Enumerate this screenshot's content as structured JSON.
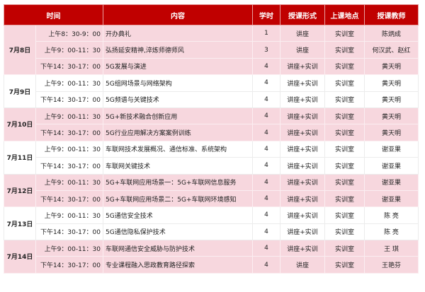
{
  "header": [
    "时间",
    "内容",
    "学时",
    "授课形式",
    "上课地点",
    "授课教师"
  ],
  "colors": {
    "header": "#c00000",
    "pink": "#f7d7de"
  },
  "groups": [
    {
      "date": "7月8日",
      "rows": [
        {
          "time": "上午8：30-9：00",
          "content": "开办典礼",
          "hours": "1",
          "form": "讲座",
          "place": "实训室",
          "teacher": "陈炳成"
        },
        {
          "time": "上午9：00-11：30",
          "content": "弘扬延安精神,淬炼师德师风",
          "hours": "3",
          "form": "讲座",
          "place": "实训室",
          "teacher": "何汉武、赵红"
        },
        {
          "time": "下午14：30-17：00",
          "content": "5G发展与演进",
          "hours": "4",
          "form": "讲座+实训",
          "place": "实训室",
          "teacher": "黄天明"
        }
      ]
    },
    {
      "date": "7月9日",
      "rows": [
        {
          "time": "上午9：00-11：30",
          "content": "5G组网场景与网络架构",
          "hours": "4",
          "form": "讲座+实训",
          "place": "实训室",
          "teacher": "黄天明"
        },
        {
          "time": "下午14：30-17：00",
          "content": "5G频谱与关键技术",
          "hours": "4",
          "form": "讲座+实训",
          "place": "实训室",
          "teacher": "黄天明"
        }
      ]
    },
    {
      "date": "7月10日",
      "rows": [
        {
          "time": "上午9：00-11：30",
          "content": "5G+新技术融合创新应用",
          "hours": "4",
          "form": "讲座+实训",
          "place": "实训室",
          "teacher": "黄天明"
        },
        {
          "time": "下午14：30-17：00",
          "content": "5G行业应用解决方案案例训练",
          "hours": "4",
          "form": "讲座+实训",
          "place": "实训室",
          "teacher": "黄天明"
        }
      ]
    },
    {
      "date": "7月11日",
      "rows": [
        {
          "time": "上午9：00-11：30",
          "content": "车联网技术发展概况、通信标准、系统架构",
          "hours": "4",
          "form": "讲座+实训",
          "place": "实训室",
          "teacher": "谢亚果"
        },
        {
          "time": "下午14：30-17：00",
          "content": "车联网关键技术",
          "hours": "4",
          "form": "讲座+实训",
          "place": "实训室",
          "teacher": "谢亚果"
        }
      ]
    },
    {
      "date": "7月12日",
      "rows": [
        {
          "time": "上午9：00-11：30",
          "content": "5G+车联网应用场景一：5G+车联网信息服务",
          "hours": "4",
          "form": "讲座+实训",
          "place": "实训室",
          "teacher": "谢亚果"
        },
        {
          "time": "下午14：30-17：00",
          "content": "5G+车联网应用场景二：5G+车联网环境感知",
          "hours": "4",
          "form": "讲座+实训",
          "place": "实训室",
          "teacher": "谢亚果"
        }
      ]
    },
    {
      "date": "7月13日",
      "rows": [
        {
          "time": "上午9：00-11：30",
          "content": "5G通信安全技术",
          "hours": "4",
          "form": "讲座+实训",
          "place": "实训室",
          "teacher": "陈 亮"
        },
        {
          "time": "下午14：30-17：00",
          "content": "5G通信隐私保护技术",
          "hours": "4",
          "form": "讲座+实训",
          "place": "实训室",
          "teacher": "陈 亮"
        }
      ]
    },
    {
      "date": "7月14日",
      "rows": [
        {
          "time": "上午9：00-11：30",
          "content": "车联网通信安全威胁与防护技术",
          "hours": "4",
          "form": "讲座+实训",
          "place": "实训室",
          "teacher": "王 琪"
        },
        {
          "time": "下午14：30-17：00",
          "content": "专业课程融入思政教育路径探索",
          "hours": "4",
          "form": "讲座",
          "place": "实训室",
          "teacher": "王艳芬"
        }
      ]
    }
  ]
}
